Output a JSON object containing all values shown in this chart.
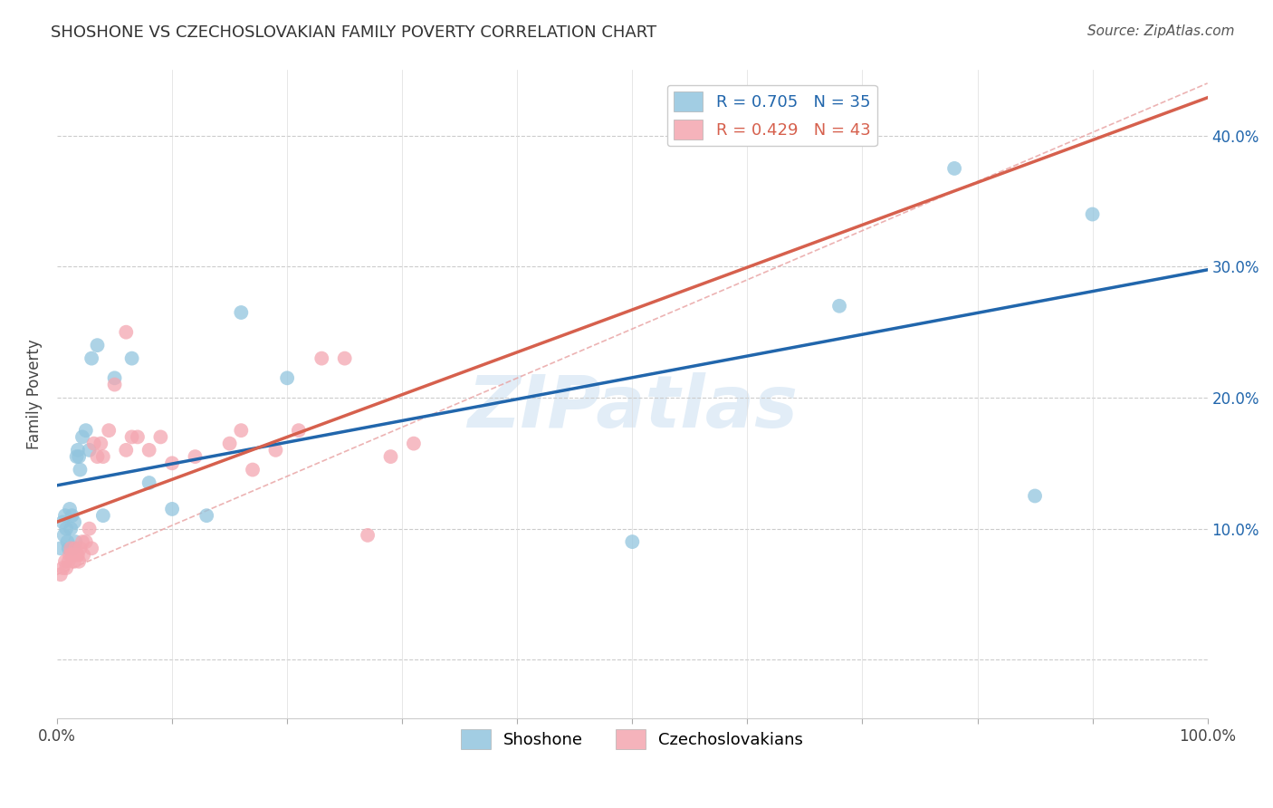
{
  "title": "SHOSHONE VS CZECHOSLOVAKIAN FAMILY POVERTY CORRELATION CHART",
  "source": "Source: ZipAtlas.com",
  "ylabel": "Family Poverty",
  "x_tick_labels": [
    "0.0%",
    "",
    "",
    "",
    "",
    "",
    "",
    "",
    "",
    "",
    "100.0%"
  ],
  "x_tick_values": [
    0.0,
    0.1,
    0.2,
    0.3,
    0.4,
    0.5,
    0.6,
    0.7,
    0.8,
    0.9,
    1.0
  ],
  "y_tick_values": [
    0.0,
    0.1,
    0.2,
    0.3,
    0.4
  ],
  "y_tick_labels_right": [
    "",
    "10.0%",
    "20.0%",
    "30.0%",
    "40.0%"
  ],
  "xlim": [
    0.0,
    1.0
  ],
  "ylim": [
    -0.045,
    0.45
  ],
  "shoshone_color": "#92c5de",
  "czechoslovakian_color": "#f4a6b0",
  "shoshone_R": 0.705,
  "shoshone_N": 35,
  "czechoslovakian_R": 0.429,
  "czechoslovakian_N": 43,
  "regression_line_color_shoshone": "#2166ac",
  "regression_line_color_czechoslovakian": "#d6604d",
  "diagonal_line_color": "#cccccc",
  "watermark": "ZIPatlas",
  "legend_label_shoshone": "Shoshone",
  "legend_label_czechoslovakian": "Czechoslovakians",
  "shoshone_x": [
    0.003,
    0.005,
    0.006,
    0.007,
    0.008,
    0.009,
    0.01,
    0.011,
    0.012,
    0.013,
    0.014,
    0.015,
    0.016,
    0.017,
    0.018,
    0.019,
    0.02,
    0.022,
    0.025,
    0.028,
    0.03,
    0.035,
    0.04,
    0.05,
    0.065,
    0.08,
    0.1,
    0.13,
    0.16,
    0.2,
    0.5,
    0.68,
    0.78,
    0.85,
    0.9
  ],
  "shoshone_y": [
    0.085,
    0.105,
    0.095,
    0.11,
    0.1,
    0.09,
    0.085,
    0.115,
    0.1,
    0.11,
    0.085,
    0.105,
    0.09,
    0.155,
    0.16,
    0.155,
    0.145,
    0.17,
    0.175,
    0.16,
    0.23,
    0.24,
    0.11,
    0.215,
    0.23,
    0.135,
    0.115,
    0.11,
    0.265,
    0.215,
    0.09,
    0.27,
    0.375,
    0.125,
    0.34
  ],
  "czechoslovakian_x": [
    0.003,
    0.005,
    0.007,
    0.008,
    0.01,
    0.011,
    0.012,
    0.013,
    0.015,
    0.016,
    0.017,
    0.018,
    0.019,
    0.02,
    0.022,
    0.023,
    0.025,
    0.028,
    0.03,
    0.032,
    0.035,
    0.038,
    0.04,
    0.045,
    0.05,
    0.06,
    0.065,
    0.07,
    0.08,
    0.09,
    0.1,
    0.12,
    0.15,
    0.17,
    0.19,
    0.21,
    0.23,
    0.25,
    0.27,
    0.29,
    0.31,
    0.16,
    0.06
  ],
  "czechoslovakian_y": [
    0.065,
    0.07,
    0.075,
    0.07,
    0.075,
    0.08,
    0.085,
    0.08,
    0.075,
    0.085,
    0.08,
    0.08,
    0.075,
    0.085,
    0.09,
    0.08,
    0.09,
    0.1,
    0.085,
    0.165,
    0.155,
    0.165,
    0.155,
    0.175,
    0.21,
    0.16,
    0.17,
    0.17,
    0.16,
    0.17,
    0.15,
    0.155,
    0.165,
    0.145,
    0.16,
    0.175,
    0.23,
    0.23,
    0.095,
    0.155,
    0.165,
    0.175,
    0.25
  ]
}
